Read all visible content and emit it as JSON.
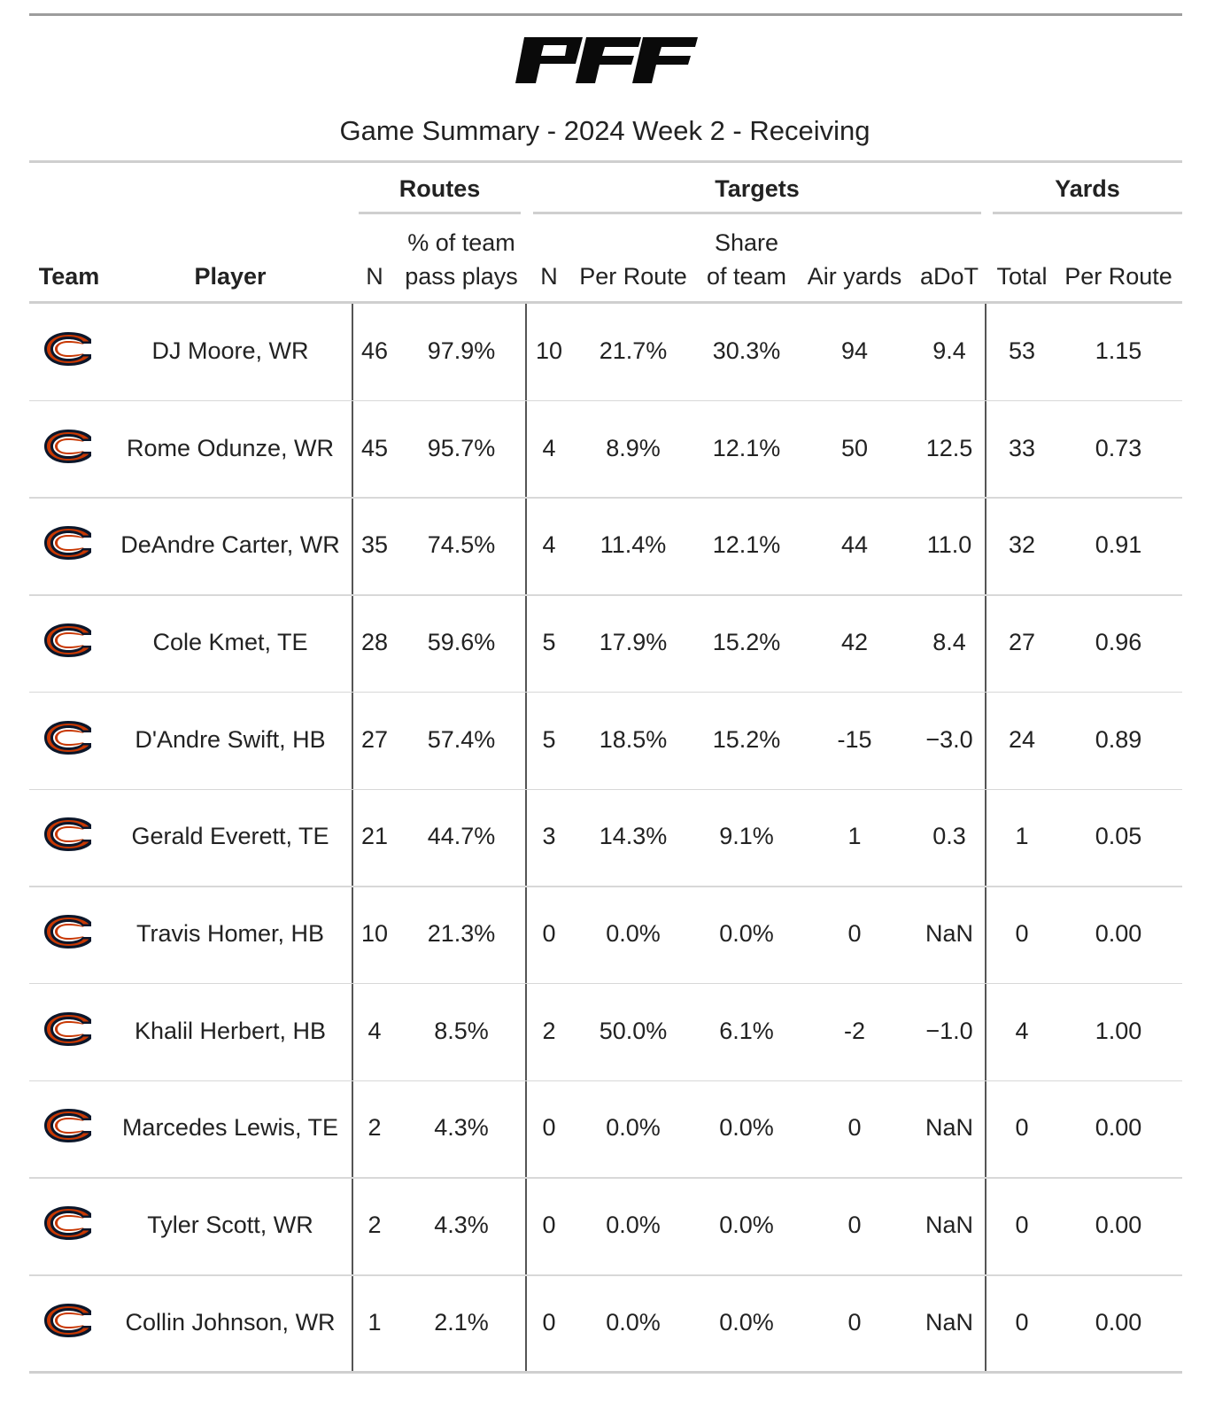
{
  "brand": {
    "logo_text": "PFF"
  },
  "title": "Game Summary - 2024 Week 2 - Receiving",
  "spanners": {
    "routes": "Routes",
    "targets": "Targets",
    "yards": "Yards"
  },
  "columns": {
    "team": "Team",
    "player": "Player",
    "routes_n": "N",
    "routes_pct_line1": "% of team",
    "routes_pct_line2": "pass plays",
    "targets_n": "N",
    "targets_per_route": "Per Route",
    "targets_share_line1": "Share",
    "targets_share_line2": "of team",
    "air_yards": "Air yards",
    "adot": "aDoT",
    "yards_total": "Total",
    "yards_per_route": "Per Route"
  },
  "team_logo_icon": "chicago-bears-c-icon",
  "colors": {
    "bears_orange": "#c83803",
    "bears_navy": "#0b162a"
  },
  "rows": [
    {
      "player": "DJ Moore, WR",
      "routes_n": "46",
      "routes_pct": "97.9%",
      "targets_n": "10",
      "targets_per_route": "21.7%",
      "targets_share": "30.3%",
      "air_yards": "94",
      "adot": "9.4",
      "yards_total": "53",
      "yards_per_route": "1.15"
    },
    {
      "player": "Rome Odunze, WR",
      "routes_n": "45",
      "routes_pct": "95.7%",
      "targets_n": "4",
      "targets_per_route": "8.9%",
      "targets_share": "12.1%",
      "air_yards": "50",
      "adot": "12.5",
      "yards_total": "33",
      "yards_per_route": "0.73"
    },
    {
      "player": "DeAndre Carter, WR",
      "routes_n": "35",
      "routes_pct": "74.5%",
      "targets_n": "4",
      "targets_per_route": "11.4%",
      "targets_share": "12.1%",
      "air_yards": "44",
      "adot": "11.0",
      "yards_total": "32",
      "yards_per_route": "0.91"
    },
    {
      "player": "Cole Kmet, TE",
      "routes_n": "28",
      "routes_pct": "59.6%",
      "targets_n": "5",
      "targets_per_route": "17.9%",
      "targets_share": "15.2%",
      "air_yards": "42",
      "adot": "8.4",
      "yards_total": "27",
      "yards_per_route": "0.96"
    },
    {
      "player": "D'Andre Swift, HB",
      "routes_n": "27",
      "routes_pct": "57.4%",
      "targets_n": "5",
      "targets_per_route": "18.5%",
      "targets_share": "15.2%",
      "air_yards": "-15",
      "adot": "−3.0",
      "yards_total": "24",
      "yards_per_route": "0.89"
    },
    {
      "player": "Gerald Everett, TE",
      "routes_n": "21",
      "routes_pct": "44.7%",
      "targets_n": "3",
      "targets_per_route": "14.3%",
      "targets_share": "9.1%",
      "air_yards": "1",
      "adot": "0.3",
      "yards_total": "1",
      "yards_per_route": "0.05"
    },
    {
      "player": "Travis Homer, HB",
      "routes_n": "10",
      "routes_pct": "21.3%",
      "targets_n": "0",
      "targets_per_route": "0.0%",
      "targets_share": "0.0%",
      "air_yards": "0",
      "adot": "NaN",
      "yards_total": "0",
      "yards_per_route": "0.00"
    },
    {
      "player": "Khalil Herbert, HB",
      "routes_n": "4",
      "routes_pct": "8.5%",
      "targets_n": "2",
      "targets_per_route": "50.0%",
      "targets_share": "6.1%",
      "air_yards": "-2",
      "adot": "−1.0",
      "yards_total": "4",
      "yards_per_route": "1.00"
    },
    {
      "player": "Marcedes Lewis, TE",
      "routes_n": "2",
      "routes_pct": "4.3%",
      "targets_n": "0",
      "targets_per_route": "0.0%",
      "targets_share": "0.0%",
      "air_yards": "0",
      "adot": "NaN",
      "yards_total": "0",
      "yards_per_route": "0.00"
    },
    {
      "player": "Tyler Scott, WR",
      "routes_n": "2",
      "routes_pct": "4.3%",
      "targets_n": "0",
      "targets_per_route": "0.0%",
      "targets_share": "0.0%",
      "air_yards": "0",
      "adot": "NaN",
      "yards_total": "0",
      "yards_per_route": "0.00"
    },
    {
      "player": "Collin Johnson, WR",
      "routes_n": "1",
      "routes_pct": "2.1%",
      "targets_n": "0",
      "targets_per_route": "0.0%",
      "targets_share": "0.0%",
      "air_yards": "0",
      "adot": "NaN",
      "yards_total": "0",
      "yards_per_route": "0.00"
    }
  ]
}
